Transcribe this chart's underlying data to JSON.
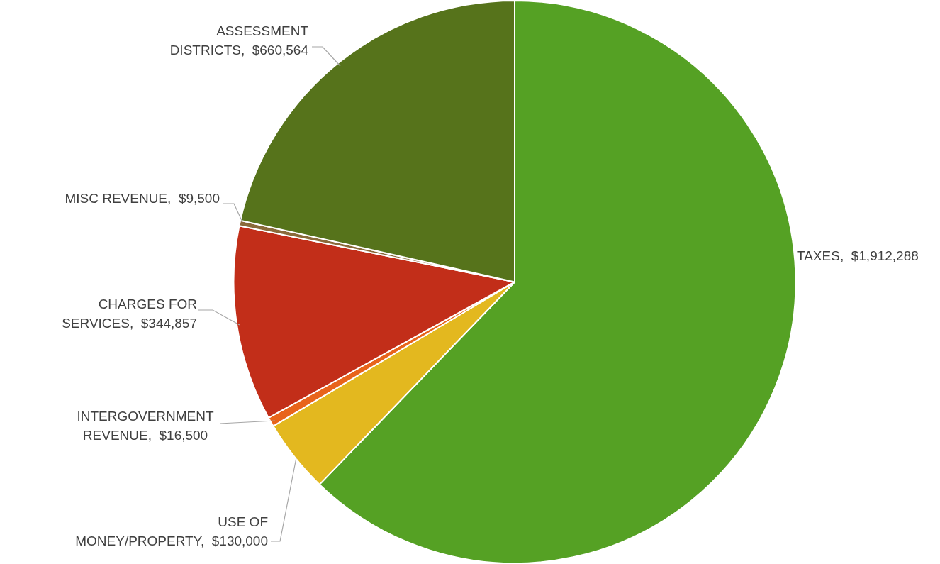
{
  "chart_data": {
    "type": "pie",
    "categories": [
      "TAXES",
      "USE OF MONEY/PROPERTY",
      "INTERGOVERNMENT REVENUE",
      "CHARGES FOR SERVICES",
      "MISC REVENUE",
      "ASSESSMENT DISTRICTS"
    ],
    "values": [
      1912288,
      130000,
      16500,
      344857,
      9500,
      660564
    ],
    "value_labels": [
      "$1,912,288",
      "$130,000",
      "$16,500",
      "$344,857",
      "$9,500",
      "$660,564"
    ],
    "colors": [
      "#55a124",
      "#e3b81f",
      "#e8641b",
      "#c22e19",
      "#8a6a3a",
      "#56731b"
    ],
    "legend": false
  }
}
